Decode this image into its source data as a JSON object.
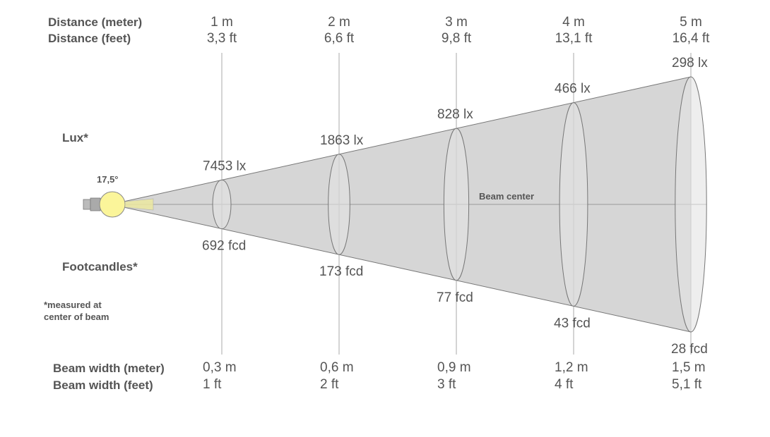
{
  "labels": {
    "distance_m": "Distance (meter)",
    "distance_ft": "Distance (feet)",
    "lux": "Lux*",
    "footcandles": "Footcandles*",
    "note_line1": "*measured at",
    "note_line2": "center of beam",
    "beam_width_m": "Beam width (meter)",
    "beam_width_ft": "Beam width (feet)",
    "beam_center": "Beam center",
    "angle": "17,5°"
  },
  "distances": [
    {
      "m": "1 m",
      "ft": "3,3 ft",
      "lux": "7453 lx",
      "fcd": "692 fcd",
      "width_m": "0,3 m",
      "width_ft": "1 ft"
    },
    {
      "m": "2 m",
      "ft": "6,6 ft",
      "lux": "1863 lx",
      "fcd": "173 fcd",
      "width_m": "0,6 m",
      "width_ft": "2 ft"
    },
    {
      "m": "3 m",
      "ft": "9,8 ft",
      "lux": "828 lx",
      "fcd": "77 fcd",
      "width_m": "0,9 m",
      "width_ft": "3 ft"
    },
    {
      "m": "4 m",
      "ft": "13,1 ft",
      "lux": "466 lx",
      "fcd": "43 fcd",
      "width_m": "1,2 m",
      "width_ft": "4 ft"
    },
    {
      "m": "5 m",
      "ft": "16,4 ft",
      "lux": "298 lx",
      "fcd": "28 fcd",
      "width_m": "1,5 m",
      "width_ft": "5,1 ft"
    }
  ],
  "colors": {
    "cone": "#d6d6d6",
    "lamp": "#fbf59a",
    "text": "#555555",
    "lines": "#999999"
  }
}
